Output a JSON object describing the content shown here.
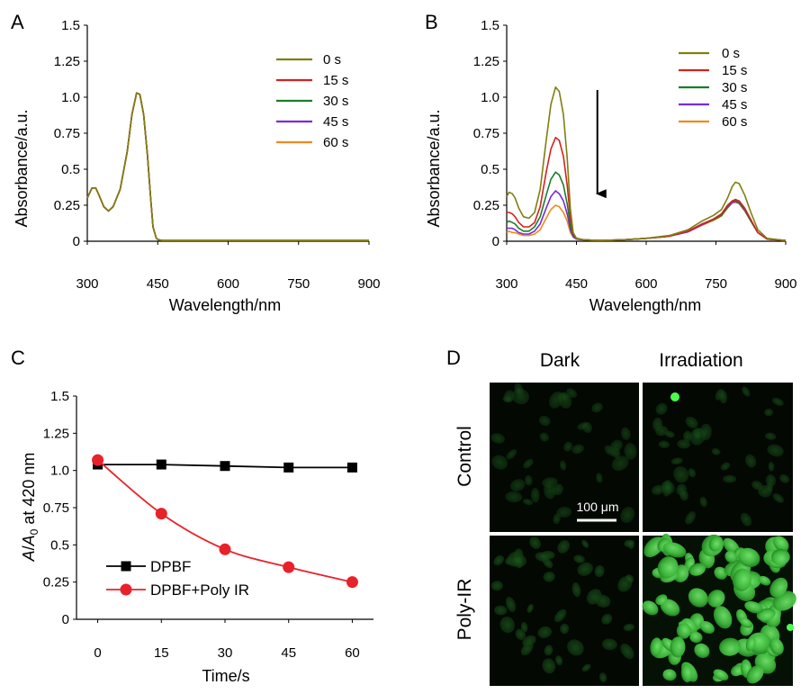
{
  "colors": {
    "0 s": "#7f7f10",
    "15 s": "#d42222",
    "30 s": "#1c7d2a",
    "45 s": "#7a2bd6",
    "60 s": "#f08a1a",
    "black": "#000000",
    "red": "#e8222a",
    "cell_green": "#2fa030"
  },
  "panels": {
    "A": {
      "letter": "A",
      "xlabel": "Wavelength/nm",
      "ylabel": "Absorbance/a.u.",
      "xticks": [
        "300",
        "450",
        "600",
        "750",
        "900"
      ],
      "yticks": [
        "0",
        "0.25",
        "0.5",
        "0.75",
        "1.0",
        "1.25",
        "1.5"
      ]
    },
    "B": {
      "letter": "B",
      "xlabel": "Wavelength/nm",
      "ylabel": "Absorbance/a.u.",
      "xticks": [
        "300",
        "450",
        "600",
        "750",
        "900"
      ],
      "yticks": [
        "0",
        "0.25",
        "0.5",
        "0.75",
        "1.0",
        "1.25",
        "1.5"
      ]
    },
    "C": {
      "letter": "C",
      "xlabel": "Time/s",
      "ylabel_parts": [
        "A",
        "/",
        "A",
        "0",
        " at 420 nm"
      ],
      "xticks": [
        "0",
        "15",
        "30",
        "45",
        "60"
      ],
      "yticks": [
        "0",
        "0.25",
        "0.5",
        "0.75",
        "1.0",
        "1.25",
        "1.5"
      ]
    },
    "D": {
      "letter": "D",
      "col_labels": [
        "Dark",
        "Irradiation"
      ],
      "row_labels": [
        "Control",
        "Poly-IR"
      ],
      "scale_bar": "100 μm"
    }
  },
  "chart_data": [
    {
      "id": "A",
      "type": "line",
      "title": "",
      "xlabel": "Wavelength/nm",
      "ylabel": "Absorbance/a.u.",
      "xlim": [
        300,
        900
      ],
      "ylim": [
        0,
        1.5
      ],
      "legend": [
        "0 s",
        "15 s",
        "30 s",
        "45 s",
        "60 s"
      ],
      "legend_position": "top-right",
      "series": [
        {
          "name": "0 s",
          "x": [
            300,
            310,
            318,
            325,
            335,
            345,
            355,
            370,
            385,
            395,
            405,
            412,
            420,
            428,
            435,
            440,
            447,
            452,
            460,
            480,
            550,
            650,
            750,
            850,
            900
          ],
          "y": [
            0.3,
            0.37,
            0.37,
            0.32,
            0.24,
            0.21,
            0.24,
            0.36,
            0.62,
            0.88,
            1.03,
            1.02,
            0.88,
            0.6,
            0.3,
            0.1,
            0.02,
            0.01,
            0.005,
            0.005,
            0.005,
            0.005,
            0.005,
            0.005,
            0.005
          ]
        },
        {
          "name": "15 s",
          "x": [
            300,
            310,
            318,
            325,
            335,
            345,
            355,
            370,
            385,
            395,
            405,
            412,
            420,
            428,
            435,
            440,
            447,
            452,
            460,
            480,
            550,
            650,
            750,
            850,
            900
          ],
          "y": [
            0.3,
            0.37,
            0.37,
            0.32,
            0.24,
            0.21,
            0.24,
            0.36,
            0.62,
            0.88,
            1.03,
            1.02,
            0.88,
            0.6,
            0.3,
            0.1,
            0.02,
            0.01,
            0.005,
            0.005,
            0.005,
            0.005,
            0.005,
            0.005,
            0.005
          ]
        },
        {
          "name": "30 s",
          "x": [
            300,
            310,
            318,
            325,
            335,
            345,
            355,
            370,
            385,
            395,
            405,
            412,
            420,
            428,
            435,
            440,
            447,
            452,
            460,
            480,
            550,
            650,
            750,
            850,
            900
          ],
          "y": [
            0.3,
            0.37,
            0.37,
            0.32,
            0.24,
            0.21,
            0.24,
            0.36,
            0.62,
            0.88,
            1.03,
            1.02,
            0.88,
            0.6,
            0.3,
            0.1,
            0.02,
            0.01,
            0.005,
            0.005,
            0.005,
            0.005,
            0.005,
            0.005,
            0.005
          ]
        },
        {
          "name": "45 s",
          "x": [
            300,
            310,
            318,
            325,
            335,
            345,
            355,
            370,
            385,
            395,
            405,
            412,
            420,
            428,
            435,
            440,
            447,
            452,
            460,
            480,
            550,
            650,
            750,
            850,
            900
          ],
          "y": [
            0.3,
            0.37,
            0.37,
            0.32,
            0.24,
            0.21,
            0.24,
            0.36,
            0.62,
            0.88,
            1.03,
            1.02,
            0.88,
            0.6,
            0.3,
            0.1,
            0.02,
            0.01,
            0.005,
            0.005,
            0.005,
            0.005,
            0.005,
            0.005,
            0.005
          ]
        },
        {
          "name": "60 s",
          "x": [
            300,
            310,
            318,
            325,
            335,
            345,
            355,
            370,
            385,
            395,
            405,
            412,
            420,
            428,
            435,
            440,
            447,
            452,
            460,
            480,
            550,
            650,
            750,
            850,
            900
          ],
          "y": [
            0.3,
            0.37,
            0.37,
            0.32,
            0.24,
            0.21,
            0.24,
            0.36,
            0.62,
            0.88,
            1.03,
            1.02,
            0.88,
            0.6,
            0.3,
            0.1,
            0.02,
            0.01,
            0.005,
            0.005,
            0.005,
            0.005,
            0.005,
            0.005,
            0.005
          ]
        }
      ]
    },
    {
      "id": "B",
      "type": "line",
      "title": "",
      "xlabel": "Wavelength/nm",
      "ylabel": "Absorbance/a.u.",
      "xlim": [
        300,
        900
      ],
      "ylim": [
        0,
        1.5
      ],
      "legend": [
        "0 s",
        "15 s",
        "30 s",
        "45 s",
        "60 s"
      ],
      "legend_position": "top-right",
      "annotation": "downward arrow at ~495 nm indicating decrease",
      "arrow": {
        "x": 495,
        "y_from": 1.05,
        "y_to": 0.33
      },
      "series": [
        {
          "name": "0 s",
          "x": [
            300,
            305,
            312,
            318,
            326,
            336,
            348,
            360,
            372,
            385,
            395,
            405,
            413,
            422,
            430,
            437,
            443,
            450,
            465,
            500,
            550,
            600,
            650,
            690,
            720,
            745,
            762,
            775,
            785,
            792,
            800,
            812,
            825,
            840,
            860,
            900
          ],
          "y": [
            0.31,
            0.34,
            0.33,
            0.3,
            0.23,
            0.17,
            0.16,
            0.2,
            0.36,
            0.7,
            0.95,
            1.07,
            1.04,
            0.88,
            0.58,
            0.22,
            0.06,
            0.02,
            0.01,
            0.005,
            0.01,
            0.02,
            0.04,
            0.08,
            0.14,
            0.18,
            0.22,
            0.3,
            0.38,
            0.41,
            0.4,
            0.32,
            0.2,
            0.08,
            0.02,
            0.005
          ]
        },
        {
          "name": "15 s",
          "x": [
            300,
            305,
            312,
            318,
            326,
            336,
            348,
            360,
            372,
            385,
            395,
            405,
            413,
            422,
            430,
            437,
            443,
            450,
            465,
            500,
            550,
            600,
            650,
            690,
            720,
            745,
            762,
            775,
            785,
            792,
            800,
            812,
            825,
            840,
            860,
            900
          ],
          "y": [
            0.2,
            0.2,
            0.19,
            0.17,
            0.13,
            0.1,
            0.1,
            0.13,
            0.24,
            0.48,
            0.64,
            0.72,
            0.7,
            0.59,
            0.39,
            0.16,
            0.05,
            0.02,
            0.01,
            0.005,
            0.01,
            0.02,
            0.035,
            0.07,
            0.12,
            0.155,
            0.19,
            0.25,
            0.28,
            0.29,
            0.28,
            0.23,
            0.15,
            0.06,
            0.015,
            0.005
          ]
        },
        {
          "name": "30 s",
          "x": [
            300,
            305,
            312,
            318,
            326,
            336,
            348,
            360,
            372,
            385,
            395,
            405,
            413,
            422,
            430,
            437,
            443,
            450,
            465,
            500,
            550,
            600,
            650,
            690,
            720,
            745,
            762,
            775,
            785,
            792,
            800,
            812,
            825,
            840,
            860,
            900
          ],
          "y": [
            0.13,
            0.14,
            0.13,
            0.12,
            0.09,
            0.07,
            0.07,
            0.1,
            0.17,
            0.32,
            0.43,
            0.48,
            0.46,
            0.39,
            0.26,
            0.11,
            0.04,
            0.02,
            0.01,
            0.005,
            0.01,
            0.02,
            0.035,
            0.07,
            0.12,
            0.15,
            0.18,
            0.24,
            0.28,
            0.28,
            0.27,
            0.22,
            0.14,
            0.06,
            0.015,
            0.005
          ]
        },
        {
          "name": "45 s",
          "x": [
            300,
            305,
            312,
            318,
            326,
            336,
            348,
            360,
            372,
            385,
            395,
            405,
            413,
            422,
            430,
            437,
            443,
            450,
            465,
            500,
            550,
            600,
            650,
            690,
            720,
            745,
            762,
            775,
            785,
            792,
            800,
            812,
            825,
            840,
            860,
            900
          ],
          "y": [
            0.09,
            0.09,
            0.09,
            0.08,
            0.06,
            0.05,
            0.05,
            0.07,
            0.12,
            0.23,
            0.31,
            0.35,
            0.33,
            0.28,
            0.19,
            0.08,
            0.03,
            0.015,
            0.01,
            0.005,
            0.01,
            0.02,
            0.035,
            0.065,
            0.115,
            0.15,
            0.18,
            0.235,
            0.27,
            0.275,
            0.265,
            0.215,
            0.14,
            0.06,
            0.015,
            0.005
          ]
        },
        {
          "name": "60 s",
          "x": [
            300,
            305,
            312,
            318,
            326,
            336,
            348,
            360,
            372,
            385,
            395,
            405,
            413,
            422,
            430,
            437,
            443,
            450,
            465,
            500,
            550,
            600,
            650,
            690,
            720,
            745,
            762,
            775,
            785,
            792,
            800,
            812,
            825,
            840,
            860,
            900
          ],
          "y": [
            0.06,
            0.07,
            0.06,
            0.06,
            0.05,
            0.04,
            0.04,
            0.05,
            0.08,
            0.16,
            0.22,
            0.25,
            0.24,
            0.2,
            0.14,
            0.06,
            0.03,
            0.015,
            0.01,
            0.005,
            0.01,
            0.02,
            0.035,
            0.065,
            0.11,
            0.145,
            0.175,
            0.23,
            0.265,
            0.27,
            0.26,
            0.21,
            0.14,
            0.06,
            0.015,
            0.005
          ]
        }
      ]
    },
    {
      "id": "C",
      "type": "line",
      "title": "",
      "xlabel": "Time/s",
      "ylabel": "A/A0 at 420 nm",
      "xlim": [
        -5,
        65
      ],
      "ylim": [
        0,
        1.5
      ],
      "categories": [
        0,
        15,
        30,
        45,
        60
      ],
      "legend": [
        "DPBF",
        "DPBF+Poly IR"
      ],
      "legend_position": "bottom-left",
      "series": [
        {
          "name": "DPBF",
          "marker": "square",
          "x": [
            0,
            15,
            30,
            45,
            60
          ],
          "values": [
            1.04,
            1.04,
            1.03,
            1.02,
            1.02
          ]
        },
        {
          "name": "DPBF+Poly IR",
          "marker": "circle",
          "x": [
            0,
            15,
            30,
            45,
            60
          ],
          "values": [
            1.07,
            0.71,
            0.47,
            0.35,
            0.25
          ]
        }
      ]
    }
  ]
}
